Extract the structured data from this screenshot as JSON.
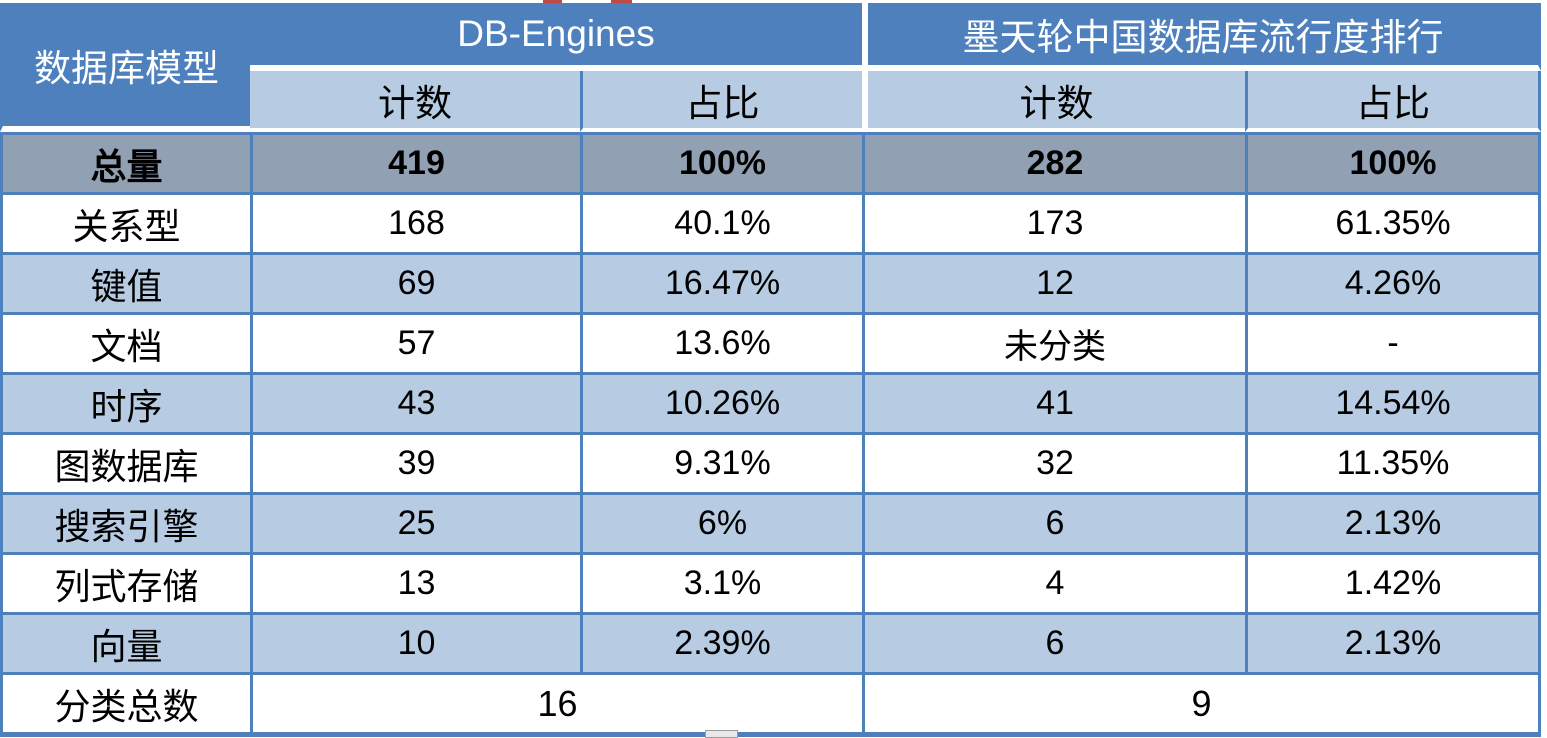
{
  "chart_data": {
    "type": "table",
    "corner_header": "数据库模型",
    "column_groups": [
      {
        "label": "DB-Engines",
        "sub_columns": [
          "计数",
          "占比"
        ]
      },
      {
        "label": "墨天轮中国数据库流行度排行",
        "sub_columns": [
          "计数",
          "占比"
        ]
      }
    ],
    "sub_headers": [
      "计数",
      "占比",
      "计数",
      "占比"
    ],
    "rows": [
      {
        "label": "总量",
        "values": [
          "419",
          "100%",
          "282",
          "100%"
        ],
        "emphasis": true
      },
      {
        "label": "关系型",
        "values": [
          "168",
          "40.1%",
          "173",
          "61.35%"
        ],
        "emphasis": false
      },
      {
        "label": "键值",
        "values": [
          "69",
          "16.47%",
          "12",
          "4.26%"
        ],
        "emphasis": false
      },
      {
        "label": "文档",
        "values": [
          "57",
          "13.6%",
          "未分类",
          "-"
        ],
        "emphasis": false
      },
      {
        "label": "时序",
        "values": [
          "43",
          "10.26%",
          "41",
          "14.54%"
        ],
        "emphasis": false
      },
      {
        "label": "图数据库",
        "values": [
          "39",
          "9.31%",
          "32",
          "11.35%"
        ],
        "emphasis": false
      },
      {
        "label": "搜索引擎",
        "values": [
          "25",
          "6%",
          "6",
          "2.13%"
        ],
        "emphasis": false
      },
      {
        "label": "列式存储",
        "values": [
          "13",
          "3.1%",
          "4",
          "1.42%"
        ],
        "emphasis": false
      },
      {
        "label": "向量",
        "values": [
          "10",
          "2.39%",
          "6",
          "2.13%"
        ],
        "emphasis": false
      }
    ],
    "footer_row": {
      "label": "分类总数",
      "merged_values": [
        "16",
        "9"
      ]
    }
  },
  "colors": {
    "header_blue": "#4E80BD",
    "band_light_blue": "#B7CBE2",
    "total_row_gray": "#92A0B3",
    "grid_border_blue": "#4E80BD",
    "header_text": "#FFFFFF",
    "body_text": "#000000",
    "clipped_mark_red": "#BE4B48"
  }
}
